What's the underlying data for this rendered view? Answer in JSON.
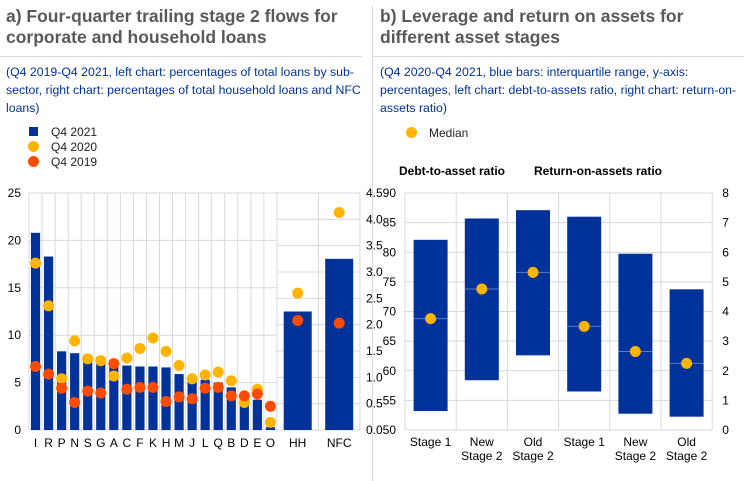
{
  "panel_a": {
    "title": "a) Four-quarter trailing stage 2 flows for corporate and household loans",
    "subtitle": "(Q4 2019-Q4 2021, left chart: percentages of total loans by sub-sector, right chart: percentages of total household loans and NFC loans)",
    "legend": [
      {
        "label": "Q4 2021",
        "shape": "square",
        "color": "#003299"
      },
      {
        "label": "Q4 2020",
        "shape": "circle",
        "color": "#ffb400"
      },
      {
        "label": "Q4 2019",
        "shape": "circle",
        "color": "#ff4b00"
      }
    ]
  },
  "panel_b": {
    "title": "b) Leverage and return on assets for different asset stages",
    "subtitle": "(Q4 2020-Q4 2021, blue bars: interquartile range, y-axis: percentages, left chart: debt-to-assets ratio, right chart: return-on-assets ratio)",
    "legend": [
      {
        "label": "Median",
        "shape": "circle",
        "color": "#ffb400"
      }
    ],
    "subchart_titles": [
      "Debt-to-asset ratio",
      "Return-on-assets ratio"
    ]
  },
  "colors": {
    "bar": "#003299",
    "q4_2020": "#ffb400",
    "q4_2019": "#ff4b00",
    "median": "#ffb400",
    "grid": "#d9d9d9",
    "title": "#595959",
    "subtitle": "#003299"
  },
  "chart_data": [
    {
      "type": "bar",
      "title": "Four-quarter trailing stage 2 flows by sub-sector (left axis)",
      "axis": "left",
      "ylim": [
        0,
        25
      ],
      "yticks": [
        "0",
        "5",
        "10",
        "15",
        "20",
        "25"
      ],
      "categories": [
        "I",
        "R",
        "P",
        "N",
        "S",
        "G",
        "A",
        "C",
        "F",
        "K",
        "H",
        "M",
        "J",
        "L",
        "Q",
        "B",
        "D",
        "E",
        "O"
      ],
      "series": [
        {
          "name": "Q4 2021",
          "mark": "bar",
          "values": [
            20.8,
            18.3,
            8.3,
            8.1,
            7.9,
            7.7,
            7.4,
            6.8,
            6.7,
            6.7,
            6.6,
            5.9,
            5.5,
            5.3,
            5.0,
            4.5,
            3.6,
            3.2,
            0.3
          ]
        },
        {
          "name": "Q4 2020",
          "mark": "dot",
          "values": [
            17.6,
            13.1,
            5.4,
            9.4,
            7.5,
            7.3,
            5.7,
            7.6,
            8.6,
            9.7,
            8.3,
            6.8,
            5.4,
            5.8,
            6.1,
            5.2,
            2.9,
            4.3,
            0.8
          ]
        },
        {
          "name": "Q4 2019",
          "mark": "dot",
          "values": [
            6.7,
            5.9,
            4.4,
            2.9,
            4.1,
            3.9,
            7.0,
            4.3,
            4.5,
            4.5,
            3.0,
            3.5,
            3.3,
            4.4,
            4.5,
            3.6,
            3.6,
            3.8,
            2.5
          ]
        }
      ]
    },
    {
      "type": "bar",
      "title": "Stage 2 flows for households and NFCs (right axis)",
      "axis": "right",
      "ylim": [
        0,
        4.5
      ],
      "yticks": [
        "0.0",
        "0.5",
        "1.0",
        "1.5",
        "2.0",
        "2.5",
        "3.0",
        "3.5",
        "4.0",
        "4.5"
      ],
      "categories": [
        "HH",
        "NFC"
      ],
      "series": [
        {
          "name": "Q4 2021",
          "mark": "bar",
          "values": [
            2.25,
            3.25
          ]
        },
        {
          "name": "Q4 2020",
          "mark": "dot",
          "values": [
            2.6,
            4.13
          ]
        },
        {
          "name": "Q4 2019",
          "mark": "dot",
          "values": [
            2.08,
            2.03
          ]
        }
      ]
    },
    {
      "type": "bar",
      "title": "Debt-to-asset ratio",
      "axis": "left",
      "ylim": [
        50,
        90
      ],
      "yticks": [
        "50",
        "55",
        "60",
        "65",
        "70",
        "75",
        "80",
        "85",
        "90"
      ],
      "categories": [
        "Stage 1",
        "New Stage 2",
        "Old Stage 2"
      ],
      "category_lines": [
        [
          "Stage 1"
        ],
        [
          "New",
          "Stage 2"
        ],
        [
          "Old",
          "Stage 2"
        ]
      ],
      "series": [
        {
          "name": "Interquartile range",
          "mark": "floating-bar",
          "low": [
            53.2,
            58.4,
            62.6
          ],
          "high": [
            82.1,
            85.7,
            87.1
          ]
        },
        {
          "name": "Median",
          "mark": "dot",
          "values": [
            68.8,
            73.8,
            76.6
          ]
        }
      ]
    },
    {
      "type": "bar",
      "title": "Return-on-assets ratio",
      "axis": "right",
      "ylim": [
        0,
        8
      ],
      "yticks": [
        "0",
        "1",
        "2",
        "3",
        "4",
        "5",
        "6",
        "7",
        "8"
      ],
      "categories": [
        "Stage 1",
        "New Stage 2",
        "Old Stage 2"
      ],
      "category_lines": [
        [
          "Stage 1"
        ],
        [
          "New",
          "Stage 2"
        ],
        [
          "Old",
          "Stage 2"
        ]
      ],
      "series": [
        {
          "name": "Interquartile range",
          "mark": "floating-bar",
          "low": [
            1.3,
            0.55,
            0.45
          ],
          "high": [
            7.2,
            5.95,
            4.75
          ]
        },
        {
          "name": "Median",
          "mark": "dot",
          "values": [
            3.5,
            2.65,
            2.25
          ]
        }
      ]
    }
  ]
}
